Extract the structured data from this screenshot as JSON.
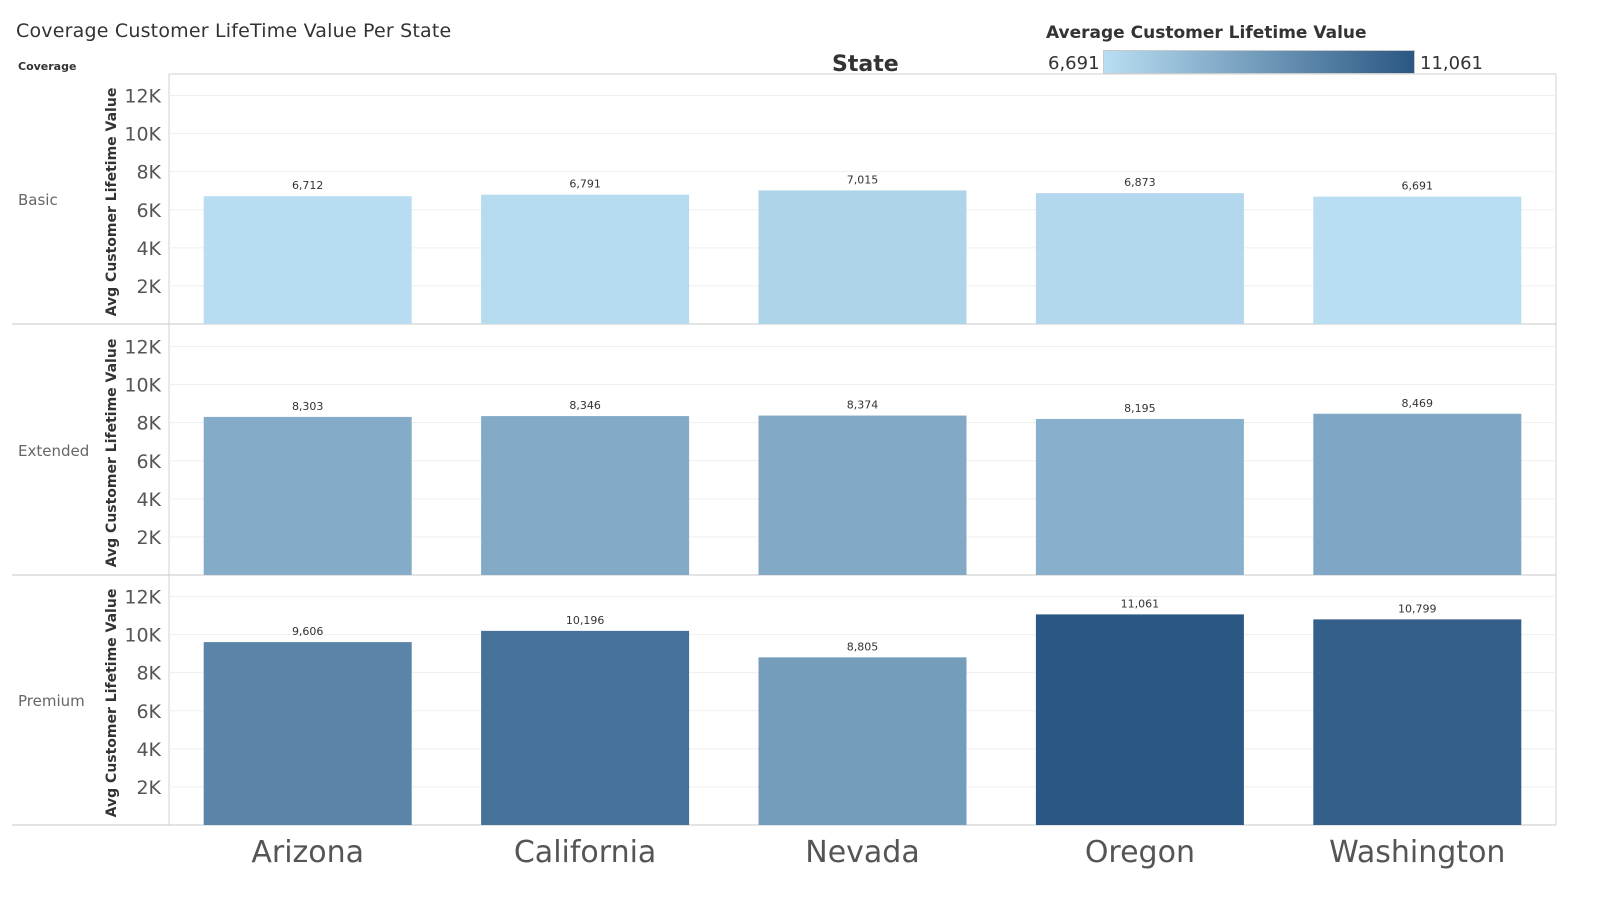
{
  "header": {
    "title": "Coverage  Customer LifeTime Value Per State",
    "row_dimension": "Coverage",
    "column_dimension": "State"
  },
  "legend": {
    "title": "Average Customer Lifetime Value",
    "min_label": "6,691",
    "max_label": "11,061",
    "min_value": 6691,
    "max_value": 11061,
    "color_low": "#b9def2",
    "color_high": "#2a5783"
  },
  "chart_data": {
    "type": "bar",
    "title": "Coverage  Customer LifeTime Value Per State",
    "xlabel": "State",
    "ylabel": "Avg Customer Lifetime Value",
    "categories": [
      "Arizona",
      "California",
      "Nevada",
      "Oregon",
      "Washington"
    ],
    "ylim": [
      0,
      12500
    ],
    "y_ticks": [
      2000,
      4000,
      6000,
      8000,
      10000,
      12000
    ],
    "y_tick_labels": [
      "2K",
      "4K",
      "6K",
      "8K",
      "10K",
      "12K"
    ],
    "grid": true,
    "legend_position": "top-right",
    "series": [
      {
        "name": "Basic",
        "values": [
          6712,
          6791,
          7015,
          6873,
          6691
        ],
        "labels": [
          "6,712",
          "6,791",
          "7,015",
          "6,873",
          "6,691"
        ]
      },
      {
        "name": "Extended",
        "values": [
          8303,
          8346,
          8374,
          8195,
          8469
        ],
        "labels": [
          "8,303",
          "8,346",
          "8,374",
          "8,195",
          "8,469"
        ]
      },
      {
        "name": "Premium",
        "values": [
          9606,
          10196,
          8805,
          11061,
          10799
        ],
        "labels": [
          "9,606",
          "10,196",
          "8,805",
          "11,061",
          "10,799"
        ]
      }
    ]
  }
}
